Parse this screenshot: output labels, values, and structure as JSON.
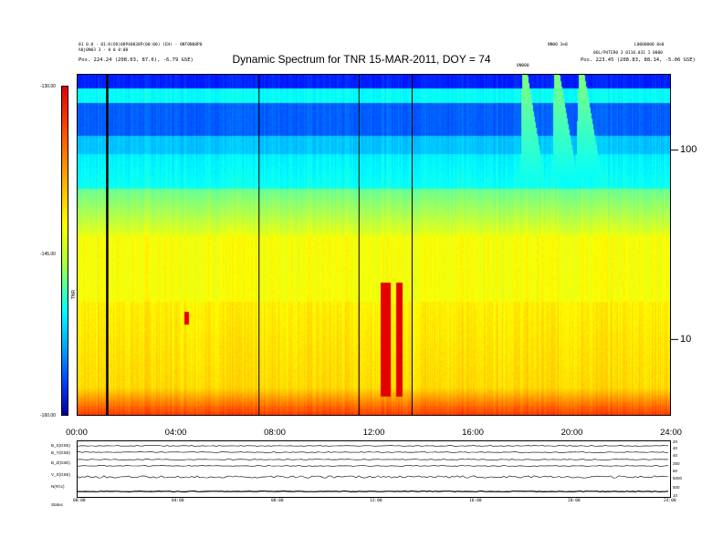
{
  "header": {
    "title": "Dynamic Spectrum for TNR 15-MAR-2011, DOY = 74",
    "left_lines": [
      "01 0.0 - 01:K(OO)08P40038P(00:00) (EH) - 0NT0N08P0",
      "A0j0N03 3 - 0 0 0:00",
      "Pos. 224.24 (208.03, 87.6), -6.79 GSE)"
    ],
    "right_lines": [
      "NN00 3e0",
      "L0000000 0e0",
      "0UL/PUTER0 3 0110.031 1 0000",
      "Pos. 223.45 (208.83, 88.14, -5.06 GSE)"
    ],
    "mid_label": "0N000"
  },
  "colorbar": {
    "unit_label": "TNR",
    "ticks": [
      "-130.00",
      "-145.00",
      "-160.00"
    ]
  },
  "chart_data": {
    "type": "heatmap",
    "title": "Dynamic Spectrum for TNR 15-MAR-2011, DOY = 74",
    "x_ticks": [
      "00:00",
      "04:00",
      "08:00",
      "12:00",
      "16:00",
      "20:00",
      "24:00"
    ],
    "x_range_hours": [
      0,
      24
    ],
    "y_scale": "log",
    "y_ticks": [
      {
        "value": 100,
        "label": "100"
      },
      {
        "value": 10,
        "label": "10"
      }
    ],
    "y_range": [
      4,
      250
    ],
    "color_range": [
      -160,
      -130
    ],
    "vertical_lines_hours": [
      1.2,
      7.35,
      11.4,
      13.55
    ],
    "bursts": [
      {
        "start": 18.1,
        "end": 18.8,
        "fmin": 45,
        "fmax": 250
      },
      {
        "start": 19.4,
        "end": 20.1,
        "fmin": 50,
        "fmax": 250
      },
      {
        "start": 20.4,
        "end": 21.0,
        "fmin": 55,
        "fmax": 250
      }
    ],
    "red_patches": [
      {
        "start": 12.25,
        "end": 12.65,
        "fmin": 5,
        "fmax": 20
      },
      {
        "start": 12.9,
        "end": 13.15,
        "fmin": 5,
        "fmax": 20
      },
      {
        "start": 4.3,
        "end": 4.5,
        "fmin": 12,
        "fmax": 14
      }
    ]
  },
  "timeseries": {
    "labels": [
      "B_X(GSE)",
      "B_Y(GSE)",
      "B_Z(GSE)",
      "V_X(GSE)",
      "N(#/cc)",
      "Status"
    ],
    "right_labels": [
      "20",
      "40",
      "40",
      "250",
      "60",
      "5000",
      "500",
      "10"
    ],
    "x_ticks": [
      "00:00",
      "04:00",
      "08:00",
      "12:00",
      "16:00",
      "20:00",
      "24:00"
    ]
  }
}
